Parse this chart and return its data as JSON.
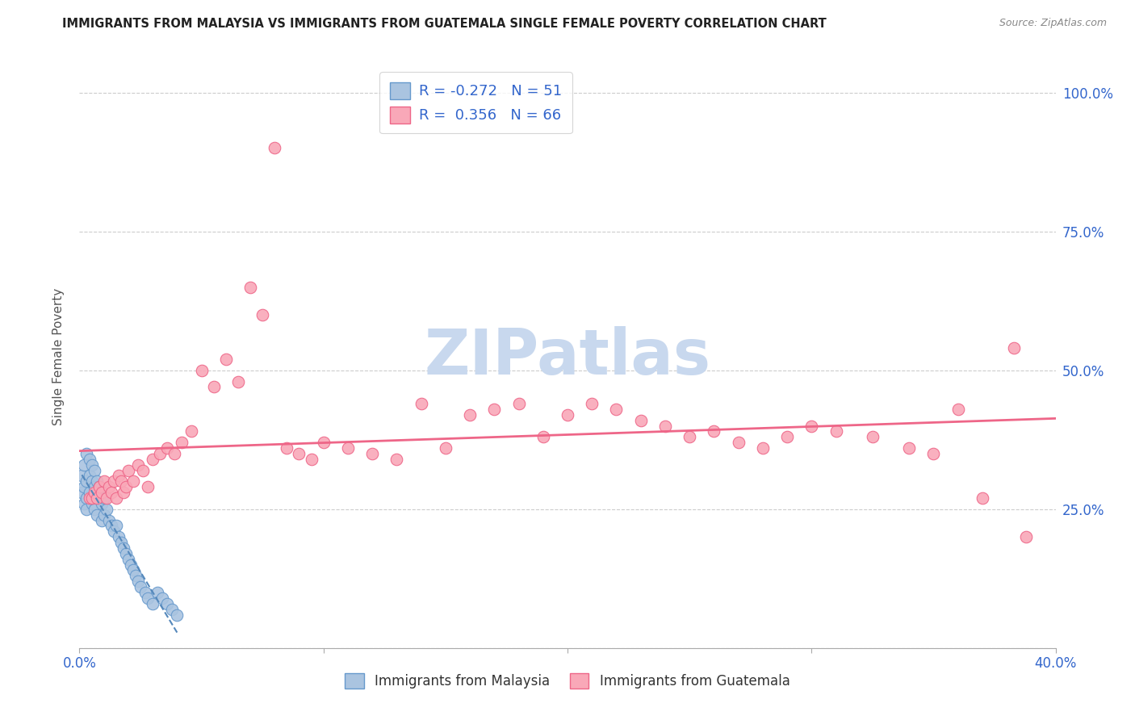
{
  "title": "IMMIGRANTS FROM MALAYSIA VS IMMIGRANTS FROM GUATEMALA SINGLE FEMALE POVERTY CORRELATION CHART",
  "source": "Source: ZipAtlas.com",
  "ylabel": "Single Female Poverty",
  "legend_label_malaysia": "Immigrants from Malaysia",
  "legend_label_guatemala": "Immigrants from Guatemala",
  "malaysia_color": "#aac4e0",
  "malaysia_edge": "#6699cc",
  "guatemala_color": "#f9a8b8",
  "guatemala_edge": "#ee6688",
  "trendline_malaysia_color": "#5588bb",
  "trendline_guatemala_color": "#ee6688",
  "watermark_color": "#c8d8ee",
  "xlim": [
    0.0,
    0.4
  ],
  "ylim": [
    0.0,
    1.05
  ],
  "malaysia_x": [
    0.001,
    0.001,
    0.002,
    0.002,
    0.002,
    0.003,
    0.003,
    0.003,
    0.003,
    0.004,
    0.004,
    0.004,
    0.005,
    0.005,
    0.005,
    0.005,
    0.006,
    0.006,
    0.006,
    0.007,
    0.007,
    0.007,
    0.008,
    0.008,
    0.009,
    0.009,
    0.01,
    0.01,
    0.011,
    0.012,
    0.013,
    0.014,
    0.015,
    0.016,
    0.017,
    0.018,
    0.019,
    0.02,
    0.021,
    0.022,
    0.023,
    0.024,
    0.025,
    0.027,
    0.028,
    0.03,
    0.032,
    0.034,
    0.036,
    0.038,
    0.04
  ],
  "malaysia_y": [
    0.28,
    0.31,
    0.33,
    0.29,
    0.26,
    0.35,
    0.3,
    0.27,
    0.25,
    0.34,
    0.31,
    0.28,
    0.33,
    0.3,
    0.27,
    0.26,
    0.29,
    0.32,
    0.25,
    0.28,
    0.3,
    0.24,
    0.27,
    0.29,
    0.26,
    0.23,
    0.27,
    0.24,
    0.25,
    0.23,
    0.22,
    0.21,
    0.22,
    0.2,
    0.19,
    0.18,
    0.17,
    0.16,
    0.15,
    0.14,
    0.13,
    0.12,
    0.11,
    0.1,
    0.09,
    0.08,
    0.1,
    0.09,
    0.08,
    0.07,
    0.06
  ],
  "guatemala_x": [
    0.004,
    0.005,
    0.006,
    0.007,
    0.008,
    0.009,
    0.01,
    0.011,
    0.012,
    0.013,
    0.014,
    0.015,
    0.016,
    0.017,
    0.018,
    0.019,
    0.02,
    0.022,
    0.024,
    0.026,
    0.028,
    0.03,
    0.033,
    0.036,
    0.039,
    0.042,
    0.046,
    0.05,
    0.055,
    0.06,
    0.065,
    0.07,
    0.075,
    0.08,
    0.085,
    0.09,
    0.095,
    0.1,
    0.11,
    0.12,
    0.13,
    0.14,
    0.15,
    0.16,
    0.17,
    0.18,
    0.19,
    0.2,
    0.21,
    0.22,
    0.23,
    0.24,
    0.25,
    0.26,
    0.27,
    0.28,
    0.29,
    0.3,
    0.31,
    0.325,
    0.34,
    0.35,
    0.36,
    0.37,
    0.383,
    0.388
  ],
  "guatemala_y": [
    0.27,
    0.27,
    0.28,
    0.27,
    0.29,
    0.28,
    0.3,
    0.27,
    0.29,
    0.28,
    0.3,
    0.27,
    0.31,
    0.3,
    0.28,
    0.29,
    0.32,
    0.3,
    0.33,
    0.32,
    0.29,
    0.34,
    0.35,
    0.36,
    0.35,
    0.37,
    0.39,
    0.5,
    0.47,
    0.52,
    0.48,
    0.65,
    0.6,
    0.9,
    0.36,
    0.35,
    0.34,
    0.37,
    0.36,
    0.35,
    0.34,
    0.44,
    0.36,
    0.42,
    0.43,
    0.44,
    0.38,
    0.42,
    0.44,
    0.43,
    0.41,
    0.4,
    0.38,
    0.39,
    0.37,
    0.36,
    0.38,
    0.4,
    0.39,
    0.38,
    0.36,
    0.35,
    0.43,
    0.27,
    0.54,
    0.2
  ]
}
